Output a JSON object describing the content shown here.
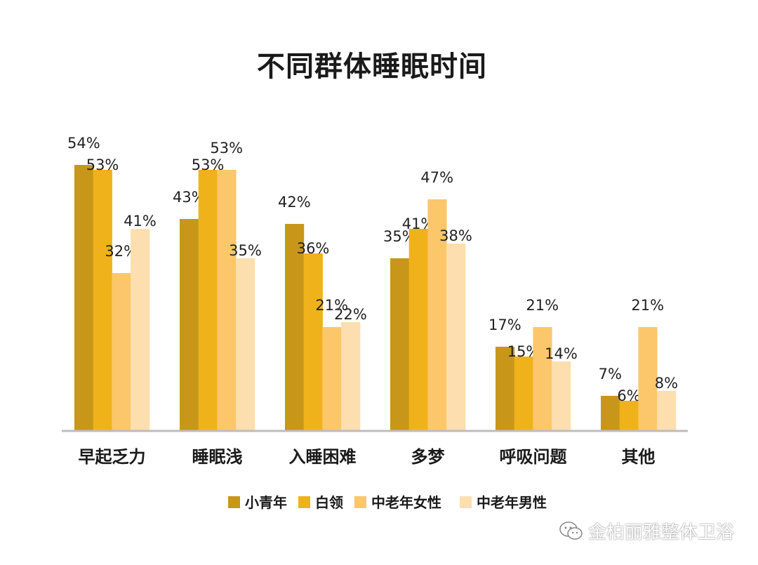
{
  "chart_data": {
    "type": "bar",
    "title": "不同群体睡眠时间",
    "categories": [
      "早起乏力",
      "睡眠浅",
      "入睡困难",
      "多梦",
      "呼吸问题",
      "其他"
    ],
    "series": [
      {
        "name": "小青年",
        "color": "#C8971A",
        "values": [
          54,
          43,
          42,
          35,
          17,
          7
        ]
      },
      {
        "name": "白领",
        "color": "#F0B21A",
        "values": [
          53,
          53,
          36,
          41,
          15,
          6
        ]
      },
      {
        "name": "中老年女性",
        "color": "#FCC76A",
        "values": [
          32,
          53,
          21,
          47,
          21,
          21
        ]
      },
      {
        "name": "中老年男性",
        "color": "#FDDEAE",
        "values": [
          41,
          35,
          22,
          38,
          14,
          8
        ]
      }
    ],
    "value_suffix": "%",
    "xlabel": "",
    "ylabel": "",
    "ylim": [
      0,
      54
    ],
    "grid": false,
    "legend": "bottom"
  },
  "watermark": "金柏丽雅整体卫浴"
}
